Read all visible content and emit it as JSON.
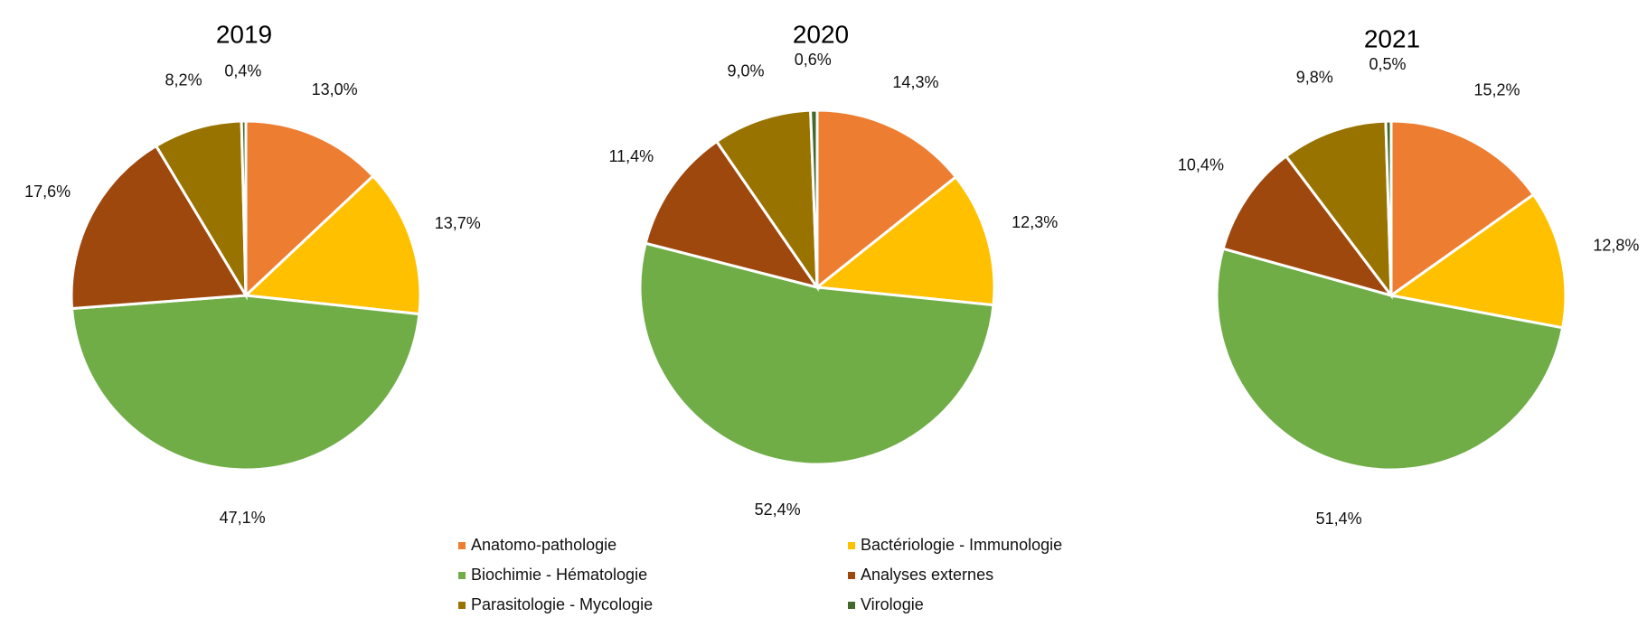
{
  "legend": [
    {
      "name": "Anatomo-pathologie",
      "color": "#ED7D31"
    },
    {
      "name": "Bactériologie - Immunologie",
      "color": "#FFC000"
    },
    {
      "name": "Biochimie - Hématologie",
      "color": "#70AD47"
    },
    {
      "name": "Analyses externes",
      "color": "#9E480E"
    },
    {
      "name": "Parasitologie - Mycologie",
      "color": "#997300"
    },
    {
      "name": "Virologie",
      "color": "#43682B"
    }
  ],
  "chart_data": [
    {
      "type": "pie",
      "title": "2019",
      "categories": [
        "Anatomo-pathologie",
        "Bactériologie - Immunologie",
        "Biochimie - Hématologie",
        "Analyses externes",
        "Parasitologie - Mycologie",
        "Virologie"
      ],
      "values": [
        13.0,
        13.7,
        47.1,
        17.6,
        8.2,
        0.4
      ],
      "labels": [
        "13,0%",
        "13,7%",
        "47,1%",
        "17,6%",
        "8,2%",
        "0,4%"
      ]
    },
    {
      "type": "pie",
      "title": "2020",
      "categories": [
        "Anatomo-pathologie",
        "Bactériologie - Immunologie",
        "Biochimie - Hématologie",
        "Analyses externes",
        "Parasitologie - Mycologie",
        "Virologie"
      ],
      "values": [
        14.3,
        12.3,
        52.4,
        11.4,
        9.0,
        0.6
      ],
      "labels": [
        "14,3%",
        "12,3%",
        "52,4%",
        "11,4%",
        "9,0%",
        "0,6%"
      ]
    },
    {
      "type": "pie",
      "title": "2021",
      "categories": [
        "Anatomo-pathologie",
        "Bactériologie - Immunologie",
        "Biochimie - Hématologie",
        "Analyses externes",
        "Parasitologie - Mycologie",
        "Virologie"
      ],
      "values": [
        15.2,
        12.8,
        51.4,
        10.4,
        9.8,
        0.5
      ],
      "labels": [
        "15,2%",
        "12,8%",
        "51,4%",
        "10,4%",
        "9,8%",
        "0,5%"
      ]
    }
  ]
}
